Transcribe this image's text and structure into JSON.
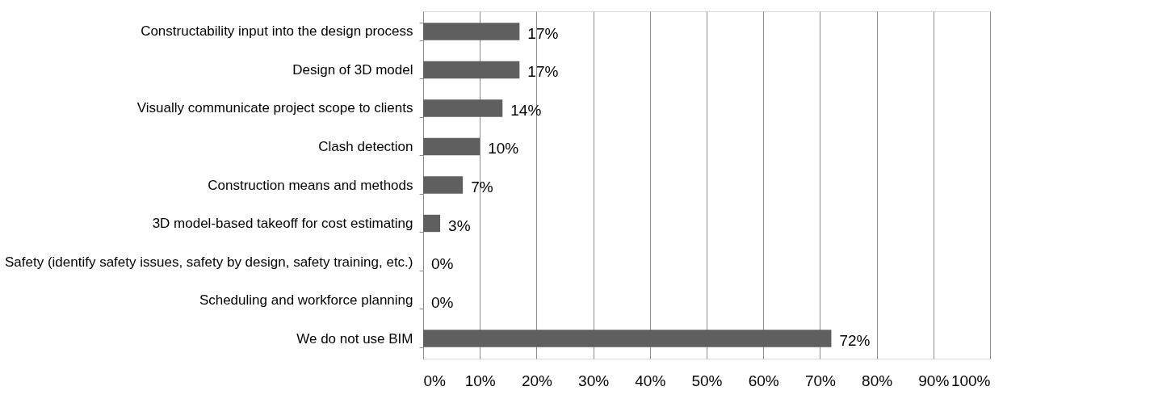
{
  "chart_data": {
    "type": "bar",
    "orientation": "horizontal",
    "categories": [
      "Constructability input into the design process",
      "Design of 3D model",
      "Visually communicate project scope to clients",
      "Clash detection",
      "Construction means and methods",
      "3D model-based takeoff for cost estimating",
      "Safety (identify safety issues, safety by design, safety training, etc.)",
      "Scheduling and workforce planning",
      "We do not use BIM"
    ],
    "values": [
      17,
      17,
      14,
      10,
      7,
      3,
      0,
      0,
      72
    ],
    "value_labels": [
      "17%",
      "17%",
      "14%",
      "10%",
      "7%",
      "3%",
      "0%",
      "0%",
      "72%"
    ],
    "color": "#5f5f5f",
    "xlim": [
      0,
      100
    ],
    "xticks": [
      {
        "value": 0,
        "label": "0%"
      },
      {
        "value": 10,
        "label": "10%"
      },
      {
        "value": 20,
        "label": "20%"
      },
      {
        "value": 30,
        "label": "30%"
      },
      {
        "value": 40,
        "label": "40%"
      },
      {
        "value": 50,
        "label": "50%"
      },
      {
        "value": 60,
        "label": "60%"
      },
      {
        "value": 70,
        "label": "70%"
      },
      {
        "value": 80,
        "label": "80%"
      },
      {
        "value": 90,
        "label": "90%"
      },
      {
        "value": 100,
        "label": "100%"
      }
    ],
    "grid": "x"
  }
}
